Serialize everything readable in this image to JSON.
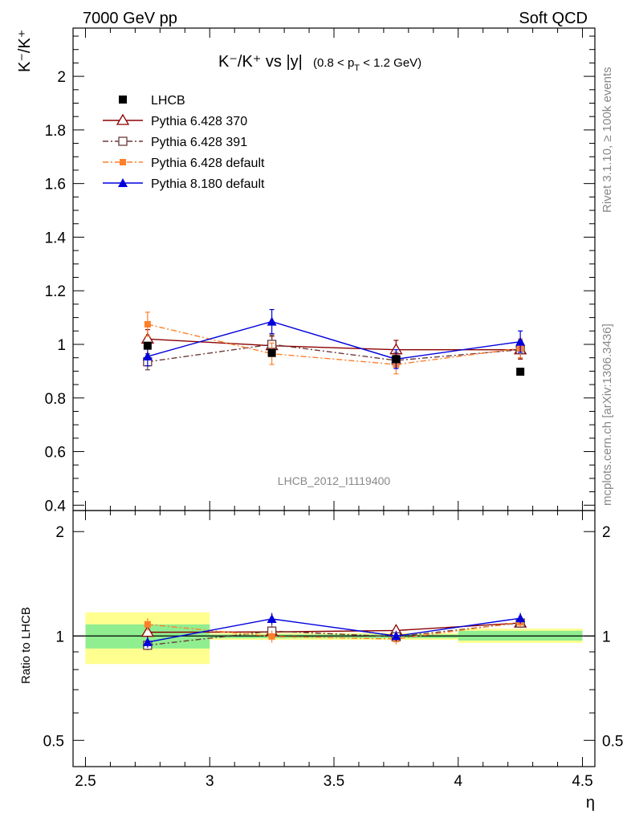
{
  "header": {
    "left": "7000 GeV pp",
    "right": "Soft QCD"
  },
  "side_labels": {
    "rivet": "Rivet 3.1.10, ≥ 100k events",
    "mcplots": "mcplots.cern.ch [arXiv:1306.3436]"
  },
  "main_plot": {
    "title_main": "K⁻/K⁺ vs |y|",
    "title_cut": "(0.8 < p",
    "title_cut_sub": "T",
    "title_cut_end": " < 1.2 GeV)",
    "ylabel": "K⁻/K⁺",
    "watermark": "LHCB_2012_I1119400"
  },
  "ratio_plot": {
    "ylabel": "Ratio to LHCB"
  },
  "xlabel": "η",
  "colors": {
    "lhcb": "#000000",
    "py370": "#8b0000",
    "py391": "#6b3a3a",
    "py6def": "#ff7f2a",
    "py8def": "#0000dd",
    "band_inner": "#90ee90",
    "band_outer": "#ffff90"
  },
  "chart_data": [
    {
      "type": "scatter",
      "x": [
        2.75,
        3.25,
        3.75,
        4.25
      ],
      "x_bins": [
        [
          2.5,
          3.0
        ],
        [
          3.0,
          3.5
        ],
        [
          3.5,
          4.0
        ],
        [
          4.0,
          4.5
        ]
      ],
      "xlim": [
        2.45,
        4.55
      ],
      "ylim": [
        0.38,
        2.18
      ],
      "yticks": [
        "0.4",
        "0.6",
        "0.8",
        "1",
        "1.2",
        "1.4",
        "1.6",
        "1.8",
        "2"
      ],
      "xticks": [
        "2.5",
        "3",
        "3.5",
        "4",
        "4.5"
      ],
      "legend_position": "top-left",
      "series": [
        {
          "name": "LHCB",
          "key": "lhcb",
          "marker": "square-filled",
          "line": "none",
          "values": [
            0.995,
            0.968,
            0.945,
            0.898
          ],
          "errors": [
            0.01,
            0.012,
            0.012,
            0.01
          ]
        },
        {
          "name": "Pythia 6.428 370",
          "key": "py370",
          "marker": "triangle-open",
          "line": "solid",
          "values": [
            1.02,
            0.995,
            0.98,
            0.98
          ],
          "errors": [
            0.035,
            0.035,
            0.035,
            0.035
          ]
        },
        {
          "name": "Pythia 6.428 391",
          "key": "py391",
          "marker": "square-open",
          "line": "dashdot",
          "values": [
            0.935,
            1.0,
            0.94,
            0.98
          ],
          "errors": [
            0.03,
            0.035,
            0.03,
            0.03
          ]
        },
        {
          "name": "Pythia 6.428 default",
          "key": "py6def",
          "marker": "square-filled-small",
          "line": "dashdot",
          "values": [
            1.075,
            0.965,
            0.925,
            0.985
          ],
          "errors": [
            0.045,
            0.04,
            0.035,
            0.035
          ]
        },
        {
          "name": "Pythia 8.180 default",
          "key": "py8def",
          "marker": "triangle-filled",
          "line": "solid",
          "values": [
            0.955,
            1.085,
            0.945,
            1.01
          ],
          "errors": [
            0.035,
            0.045,
            0.035,
            0.04
          ]
        }
      ]
    },
    {
      "type": "scatter",
      "title": "ratio",
      "scale": "log",
      "ylim": [
        0.42,
        2.3
      ],
      "yticks": [
        "0.5",
        "1",
        "2"
      ],
      "reference_line": 1,
      "bands": [
        {
          "x": [
            2.5,
            3.0
          ],
          "inner": [
            0.92,
            1.08
          ],
          "outer": [
            0.83,
            1.17
          ]
        },
        {
          "x": [
            3.0,
            3.5
          ],
          "inner": [
            0.985,
            1.01
          ],
          "outer": [
            0.975,
            1.02
          ]
        },
        {
          "x": [
            3.5,
            4.0
          ],
          "inner": [
            0.985,
            1.01
          ],
          "outer": [
            0.975,
            1.02
          ]
        },
        {
          "x": [
            4.0,
            4.5
          ],
          "inner": [
            0.97,
            1.035
          ],
          "outer": [
            0.955,
            1.05
          ]
        }
      ],
      "series": [
        {
          "name": "Pythia 6.428 370",
          "key": "py370",
          "values": [
            1.025,
            1.027,
            1.037,
            1.09
          ],
          "errors": [
            0.035,
            0.035,
            0.035,
            0.035
          ]
        },
        {
          "name": "Pythia 6.428 391",
          "key": "py391",
          "values": [
            0.94,
            1.033,
            0.995,
            1.09
          ],
          "errors": [
            0.03,
            0.035,
            0.03,
            0.03
          ]
        },
        {
          "name": "Pythia 6.428 default",
          "key": "py6def",
          "values": [
            1.08,
            0.997,
            0.98,
            1.095
          ],
          "errors": [
            0.045,
            0.04,
            0.035,
            0.035
          ]
        },
        {
          "name": "Pythia 8.180 default",
          "key": "py8def",
          "values": [
            0.96,
            1.12,
            1.0,
            1.125
          ],
          "errors": [
            0.035,
            0.045,
            0.035,
            0.04
          ]
        }
      ]
    }
  ]
}
